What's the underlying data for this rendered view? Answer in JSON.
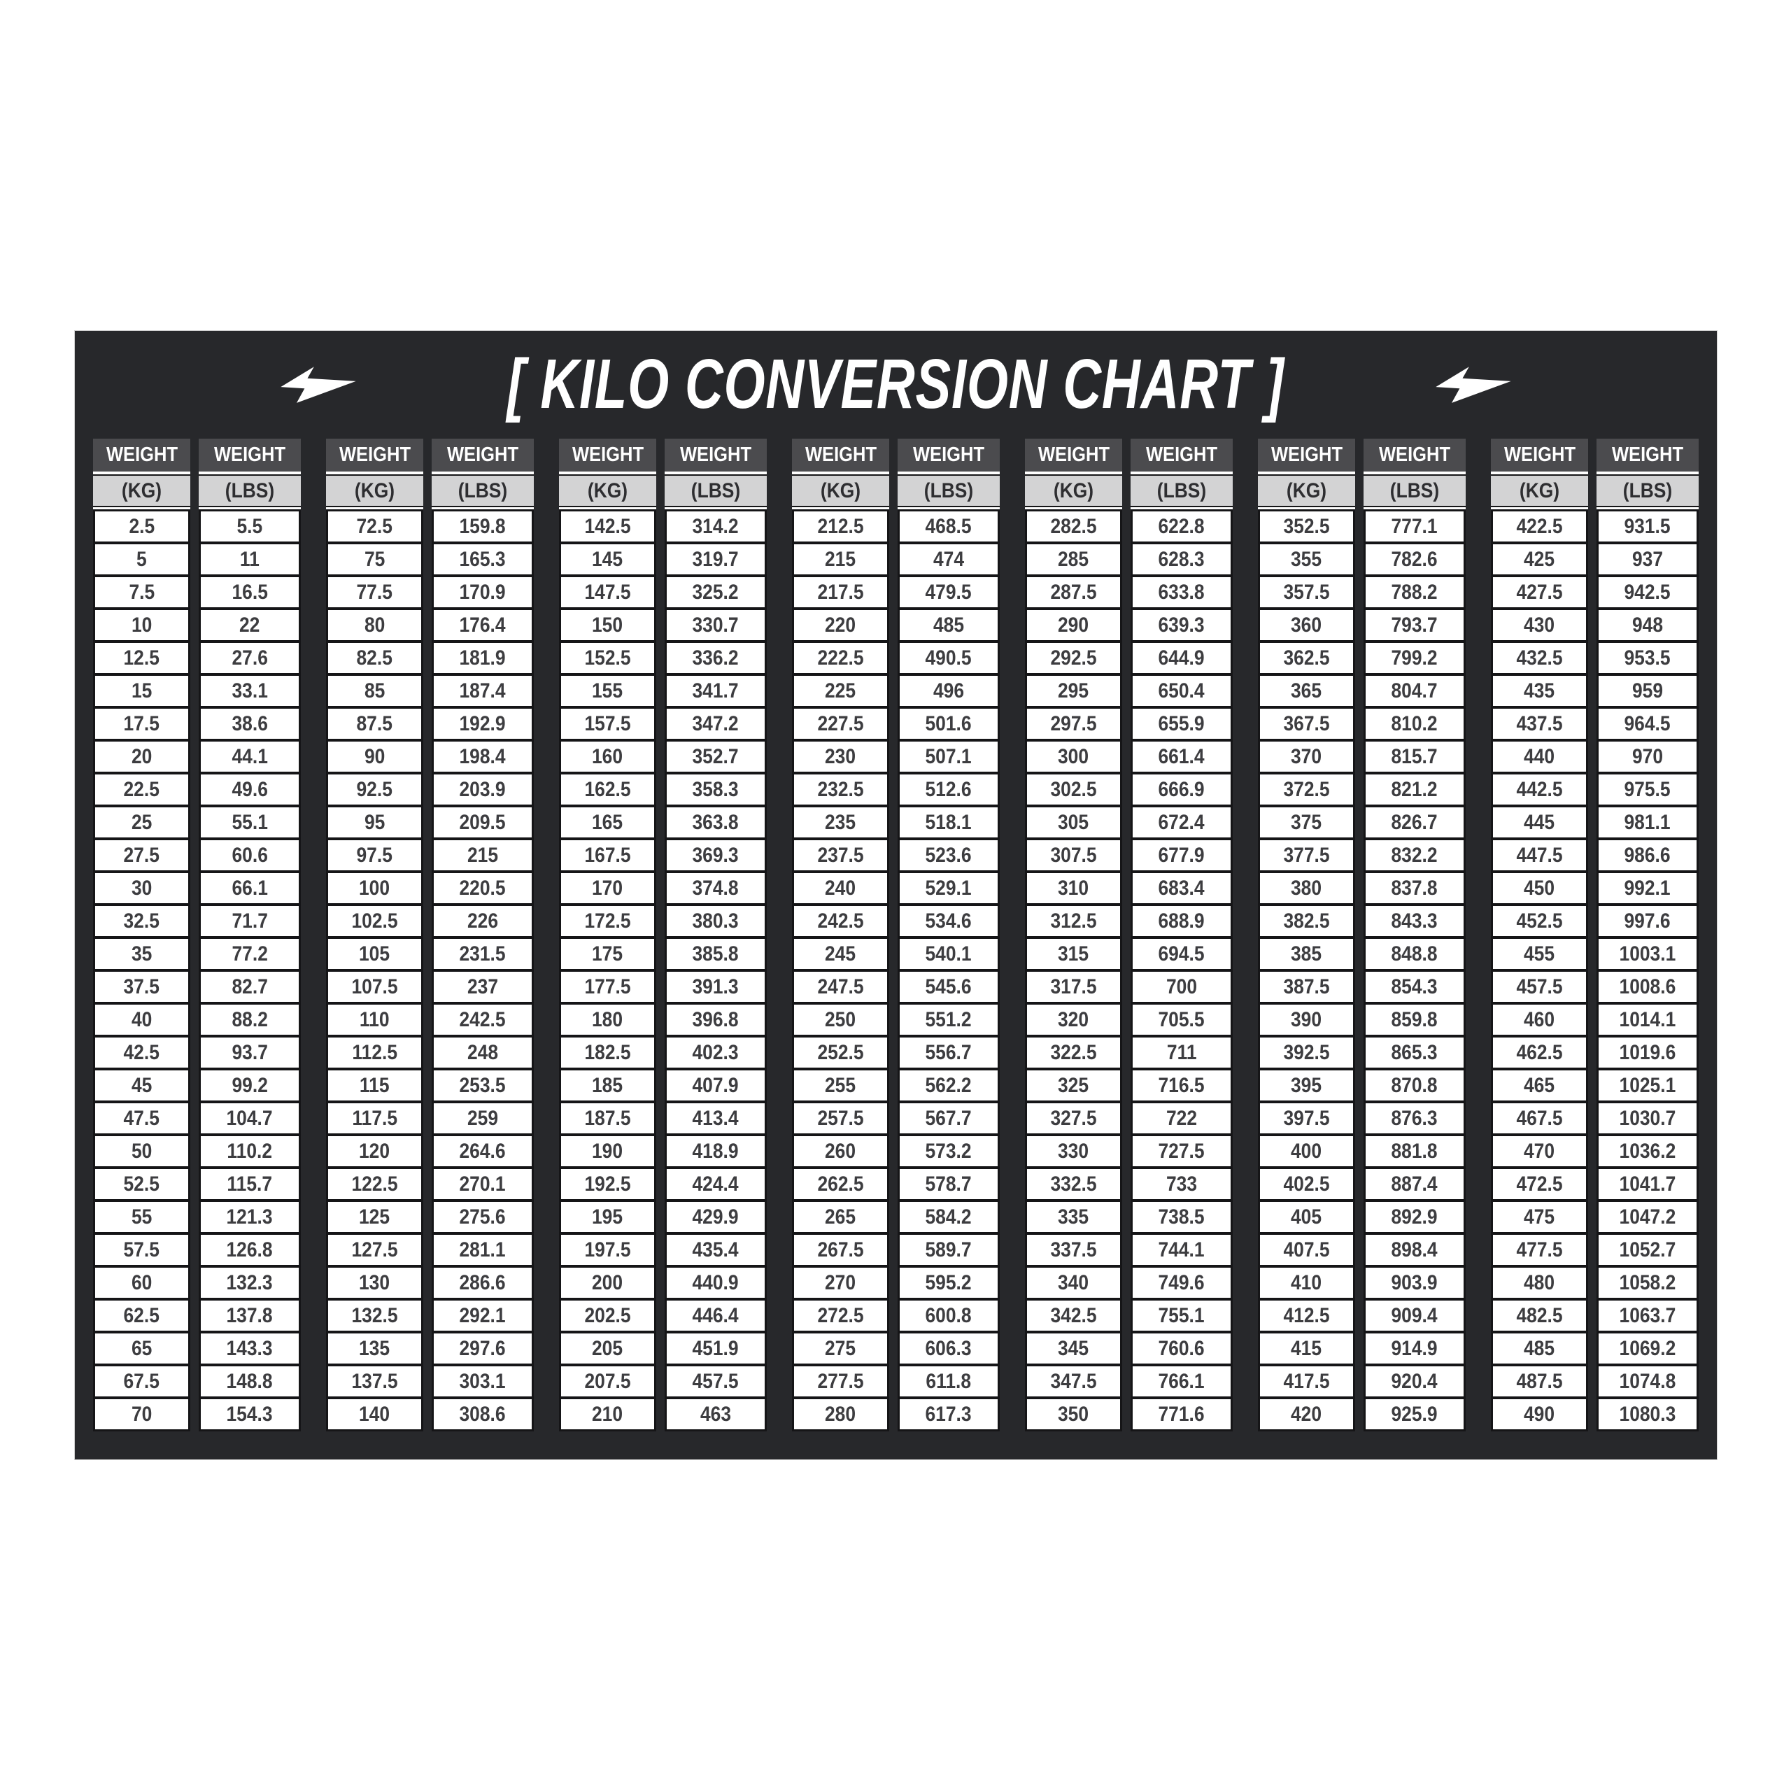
{
  "title": {
    "text": "[ KILO CONVERSION CHART ]",
    "left_icon": "lightning-bolt",
    "right_icon": "lightning-bolt"
  },
  "colors": {
    "page_bg": "#ffffff",
    "panel_bg": "#27282b",
    "header_dark_bg": "#4b4b4e",
    "header_light_bg": "#d3d3d4",
    "cell_bg": "#ffffff",
    "grid_line": "#151517",
    "title_color": "#ffffff",
    "cell_text": "#3d3d40"
  },
  "chart_data": {
    "type": "table",
    "title": "[ KILO CONVERSION CHART ]",
    "header_line1": "WEIGHT",
    "kg_unit_label": "(KG)",
    "lbs_unit_label": "(LBS)",
    "column_headers": [
      "WEIGHT (KG)",
      "WEIGHT (LBS)"
    ],
    "rows_per_group": 28,
    "groups": [
      {
        "kg": [
          "2.5",
          "5",
          "7.5",
          "10",
          "12.5",
          "15",
          "17.5",
          "20",
          "22.5",
          "25",
          "27.5",
          "30",
          "32.5",
          "35",
          "37.5",
          "40",
          "42.5",
          "45",
          "47.5",
          "50",
          "52.5",
          "55",
          "57.5",
          "60",
          "62.5",
          "65",
          "67.5",
          "70"
        ],
        "lbs": [
          "5.5",
          "11",
          "16.5",
          "22",
          "27.6",
          "33.1",
          "38.6",
          "44.1",
          "49.6",
          "55.1",
          "60.6",
          "66.1",
          "71.7",
          "77.2",
          "82.7",
          "88.2",
          "93.7",
          "99.2",
          "104.7",
          "110.2",
          "115.7",
          "121.3",
          "126.8",
          "132.3",
          "137.8",
          "143.3",
          "148.8",
          "154.3"
        ]
      },
      {
        "kg": [
          "72.5",
          "75",
          "77.5",
          "80",
          "82.5",
          "85",
          "87.5",
          "90",
          "92.5",
          "95",
          "97.5",
          "100",
          "102.5",
          "105",
          "107.5",
          "110",
          "112.5",
          "115",
          "117.5",
          "120",
          "122.5",
          "125",
          "127.5",
          "130",
          "132.5",
          "135",
          "137.5",
          "140"
        ],
        "lbs": [
          "159.8",
          "165.3",
          "170.9",
          "176.4",
          "181.9",
          "187.4",
          "192.9",
          "198.4",
          "203.9",
          "209.5",
          "215",
          "220.5",
          "226",
          "231.5",
          "237",
          "242.5",
          "248",
          "253.5",
          "259",
          "264.6",
          "270.1",
          "275.6",
          "281.1",
          "286.6",
          "292.1",
          "297.6",
          "303.1",
          "308.6"
        ]
      },
      {
        "kg": [
          "142.5",
          "145",
          "147.5",
          "150",
          "152.5",
          "155",
          "157.5",
          "160",
          "162.5",
          "165",
          "167.5",
          "170",
          "172.5",
          "175",
          "177.5",
          "180",
          "182.5",
          "185",
          "187.5",
          "190",
          "192.5",
          "195",
          "197.5",
          "200",
          "202.5",
          "205",
          "207.5",
          "210"
        ],
        "lbs": [
          "314.2",
          "319.7",
          "325.2",
          "330.7",
          "336.2",
          "341.7",
          "347.2",
          "352.7",
          "358.3",
          "363.8",
          "369.3",
          "374.8",
          "380.3",
          "385.8",
          "391.3",
          "396.8",
          "402.3",
          "407.9",
          "413.4",
          "418.9",
          "424.4",
          "429.9",
          "435.4",
          "440.9",
          "446.4",
          "451.9",
          "457.5",
          "463"
        ]
      },
      {
        "kg": [
          "212.5",
          "215",
          "217.5",
          "220",
          "222.5",
          "225",
          "227.5",
          "230",
          "232.5",
          "235",
          "237.5",
          "240",
          "242.5",
          "245",
          "247.5",
          "250",
          "252.5",
          "255",
          "257.5",
          "260",
          "262.5",
          "265",
          "267.5",
          "270",
          "272.5",
          "275",
          "277.5",
          "280"
        ],
        "lbs": [
          "468.5",
          "474",
          "479.5",
          "485",
          "490.5",
          "496",
          "501.6",
          "507.1",
          "512.6",
          "518.1",
          "523.6",
          "529.1",
          "534.6",
          "540.1",
          "545.6",
          "551.2",
          "556.7",
          "562.2",
          "567.7",
          "573.2",
          "578.7",
          "584.2",
          "589.7",
          "595.2",
          "600.8",
          "606.3",
          "611.8",
          "617.3"
        ]
      },
      {
        "kg": [
          "282.5",
          "285",
          "287.5",
          "290",
          "292.5",
          "295",
          "297.5",
          "300",
          "302.5",
          "305",
          "307.5",
          "310",
          "312.5",
          "315",
          "317.5",
          "320",
          "322.5",
          "325",
          "327.5",
          "330",
          "332.5",
          "335",
          "337.5",
          "340",
          "342.5",
          "345",
          "347.5",
          "350"
        ],
        "lbs": [
          "622.8",
          "628.3",
          "633.8",
          "639.3",
          "644.9",
          "650.4",
          "655.9",
          "661.4",
          "666.9",
          "672.4",
          "677.9",
          "683.4",
          "688.9",
          "694.5",
          "700",
          "705.5",
          "711",
          "716.5",
          "722",
          "727.5",
          "733",
          "738.5",
          "744.1",
          "749.6",
          "755.1",
          "760.6",
          "766.1",
          "771.6"
        ]
      },
      {
        "kg": [
          "352.5",
          "355",
          "357.5",
          "360",
          "362.5",
          "365",
          "367.5",
          "370",
          "372.5",
          "375",
          "377.5",
          "380",
          "382.5",
          "385",
          "387.5",
          "390",
          "392.5",
          "395",
          "397.5",
          "400",
          "402.5",
          "405",
          "407.5",
          "410",
          "412.5",
          "415",
          "417.5",
          "420"
        ],
        "lbs": [
          "777.1",
          "782.6",
          "788.2",
          "793.7",
          "799.2",
          "804.7",
          "810.2",
          "815.7",
          "821.2",
          "826.7",
          "832.2",
          "837.8",
          "843.3",
          "848.8",
          "854.3",
          "859.8",
          "865.3",
          "870.8",
          "876.3",
          "881.8",
          "887.4",
          "892.9",
          "898.4",
          "903.9",
          "909.4",
          "914.9",
          "920.4",
          "925.9"
        ]
      },
      {
        "kg": [
          "422.5",
          "425",
          "427.5",
          "430",
          "432.5",
          "435",
          "437.5",
          "440",
          "442.5",
          "445",
          "447.5",
          "450",
          "452.5",
          "455",
          "457.5",
          "460",
          "462.5",
          "465",
          "467.5",
          "470",
          "472.5",
          "475",
          "477.5",
          "480",
          "482.5",
          "485",
          "487.5",
          "490"
        ],
        "lbs": [
          "931.5",
          "937",
          "942.5",
          "948",
          "953.5",
          "959",
          "964.5",
          "970",
          "975.5",
          "981.1",
          "986.6",
          "992.1",
          "997.6",
          "1003.1",
          "1008.6",
          "1014.1",
          "1019.6",
          "1025.1",
          "1030.7",
          "1036.2",
          "1041.7",
          "1047.2",
          "1052.7",
          "1058.2",
          "1063.7",
          "1069.2",
          "1074.8",
          "1080.3"
        ]
      }
    ]
  }
}
